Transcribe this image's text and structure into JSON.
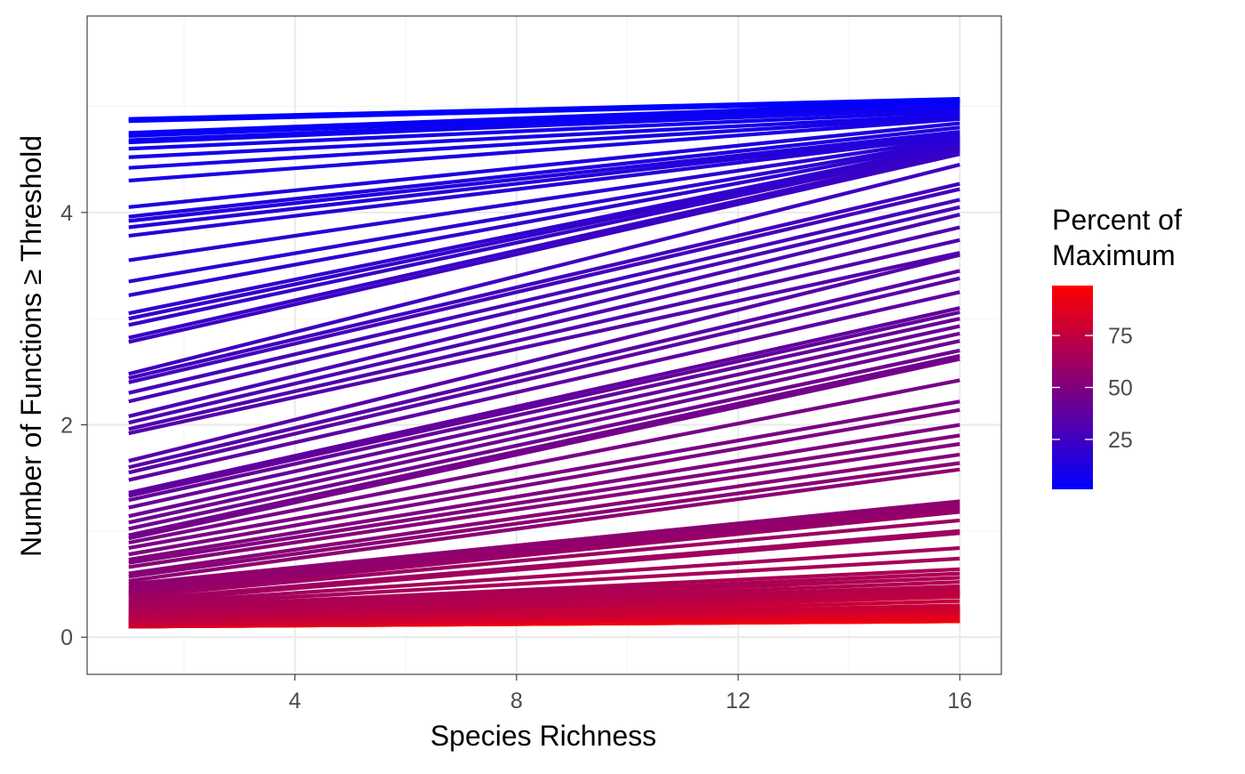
{
  "chart_data": {
    "type": "line",
    "xlabel": "Species Richness",
    "ylabel": "Number of Functions ≥ Threshold",
    "x_range": [
      1,
      16
    ],
    "xlim": [
      0.25,
      16.75
    ],
    "ylim": [
      -0.35,
      5.85
    ],
    "x_ticks": [
      4,
      8,
      12,
      16
    ],
    "x_minor_ticks": [
      2,
      6,
      10,
      14
    ],
    "y_ticks": [
      0,
      2,
      4
    ],
    "y_minor_ticks": [
      1,
      3,
      5
    ],
    "grid": true,
    "theme": "bw",
    "line_count": 99,
    "series_fit": "linear",
    "series_intercepts_at_x1": [
      4.88,
      4.87,
      4.86,
      4.75,
      4.72,
      4.68,
      4.66,
      4.6,
      4.52,
      4.42,
      4.3,
      4.05,
      3.96,
      3.92,
      3.86,
      3.78,
      3.55,
      3.35,
      3.22,
      3.05,
      3.0,
      2.94,
      2.82,
      2.78,
      2.48,
      2.44,
      2.4,
      2.3,
      2.22,
      2.08,
      2.02,
      1.96,
      1.92,
      1.66,
      1.6,
      1.55,
      1.48,
      1.36,
      1.33,
      1.29,
      1.22,
      1.14,
      1.08,
      1.02,
      0.96,
      0.93,
      0.89,
      0.84,
      0.78,
      0.73,
      0.7,
      0.66,
      0.6,
      0.57,
      0.53,
      0.5,
      0.47,
      0.44,
      0.42,
      0.4,
      0.38,
      0.35,
      0.33,
      0.31,
      0.29,
      0.27,
      0.25,
      0.24,
      0.22,
      0.21,
      0.19,
      0.18,
      0.17,
      0.16,
      0.15,
      0.14,
      0.13,
      0.125,
      0.12,
      0.115,
      0.11,
      0.105,
      0.1,
      0.1,
      0.1,
      0.1,
      0.1,
      0.1,
      0.1,
      0.1,
      0.1,
      0.1,
      0.1,
      0.1,
      0.1,
      0.1,
      0.1,
      0.1,
      0.1
    ],
    "series_values_at_x16": [
      5.07,
      5.06,
      5.05,
      5.04,
      5.02,
      5.0,
      4.98,
      4.95,
      4.92,
      4.9,
      4.88,
      4.84,
      4.8,
      4.76,
      4.74,
      4.72,
      4.7,
      4.68,
      4.66,
      4.64,
      4.62,
      4.6,
      4.58,
      4.55,
      4.45,
      4.27,
      4.22,
      4.12,
      4.05,
      3.98,
      3.86,
      3.74,
      3.62,
      3.6,
      3.45,
      3.38,
      3.25,
      3.1,
      3.06,
      3.0,
      2.93,
      2.86,
      2.79,
      2.7,
      2.65,
      2.62,
      2.42,
      2.22,
      2.14,
      2.0,
      1.9,
      1.82,
      1.72,
      1.64,
      1.58,
      1.28,
      1.25,
      1.22,
      1.2,
      1.18,
      1.1,
      1.0,
      0.98,
      0.84,
      0.74,
      0.64,
      0.6,
      0.56,
      0.52,
      0.48,
      0.45,
      0.43,
      0.42,
      0.41,
      0.4,
      0.38,
      0.34,
      0.3,
      0.29,
      0.28,
      0.27,
      0.26,
      0.25,
      0.24,
      0.23,
      0.22,
      0.21,
      0.2,
      0.19,
      0.18,
      0.17,
      0.17,
      0.16,
      0.16,
      0.16,
      0.16,
      0.15,
      0.15,
      0.15
    ],
    "series_percent_of_maximum": [
      1,
      2,
      3,
      4,
      5,
      6,
      7,
      8,
      9,
      10,
      11,
      12,
      13,
      14,
      15,
      16,
      17,
      18,
      19,
      20,
      21,
      22,
      23,
      24,
      25,
      26,
      27,
      28,
      29,
      30,
      31,
      32,
      33,
      34,
      35,
      36,
      37,
      38,
      39,
      40,
      41,
      42,
      43,
      44,
      45,
      46,
      47,
      48,
      49,
      50,
      51,
      52,
      53,
      54,
      55,
      56,
      57,
      58,
      59,
      60,
      61,
      62,
      63,
      64,
      65,
      66,
      67,
      68,
      69,
      70,
      71,
      72,
      73,
      74,
      75,
      76,
      77,
      78,
      79,
      80,
      81,
      82,
      83,
      84,
      85,
      86,
      87,
      88,
      89,
      90,
      91,
      92,
      93,
      94,
      95,
      96,
      97,
      98,
      99
    ],
    "legend": {
      "title_lines": [
        "Percent of",
        "Maximum"
      ],
      "placement": "right",
      "type": "colorbar",
      "range": [
        1,
        99
      ],
      "ticks": [
        25,
        50,
        75
      ],
      "low_color": "#0000FF",
      "high_color": "#FF0000"
    },
    "colors": {
      "panel_border": "#333333",
      "grid_major": "#EBEBEB",
      "grid_minor": "#F5F5F5",
      "tick_text": "#4D4D4D",
      "tick_mark": "#333333",
      "axis_title": "#000000"
    }
  }
}
